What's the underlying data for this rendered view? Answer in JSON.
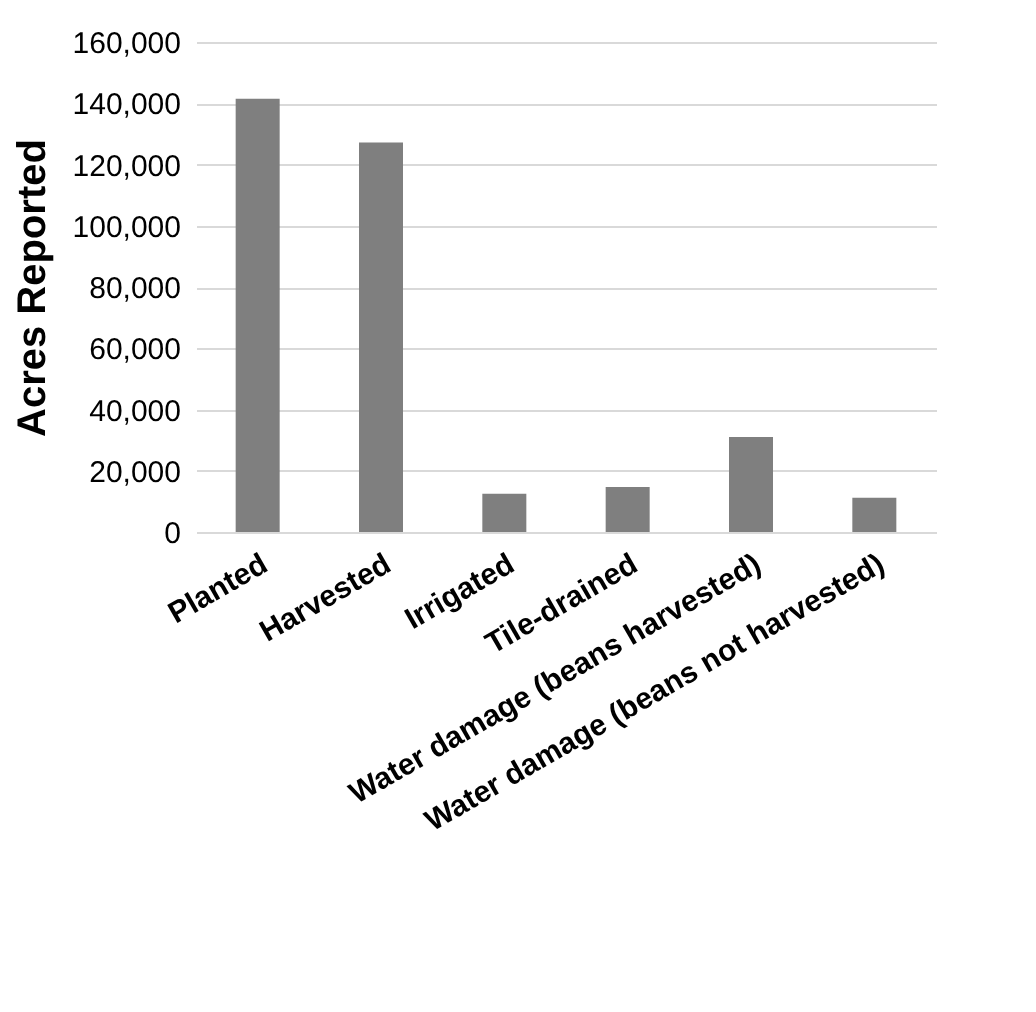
{
  "chart_data": {
    "type": "bar",
    "ylabel": "Acres Reported",
    "categories": [
      "Planted",
      "Harvested",
      "Irrigated",
      "Tile-drained",
      "Water damage (beans harvested)",
      "Water damage (beans not harvested)"
    ],
    "values": [
      141500,
      127200,
      12500,
      14700,
      31000,
      11200
    ],
    "color": "#7f7f7f",
    "ylim": [
      0,
      160000
    ],
    "yticks": [
      0,
      {
        "value": 20000,
        "label": "20,000"
      },
      {
        "value": 40000,
        "label": "40,000"
      },
      {
        "value": 60000,
        "label": "60,000"
      },
      {
        "value": 80000,
        "label": "80,000"
      },
      {
        "value": 100000,
        "label": "100,000"
      },
      {
        "value": 120000,
        "label": "120,000"
      },
      {
        "value": 140000,
        "label": "140,000"
      },
      {
        "value": 160000,
        "label": "160,000"
      }
    ],
    "grid": "y"
  }
}
